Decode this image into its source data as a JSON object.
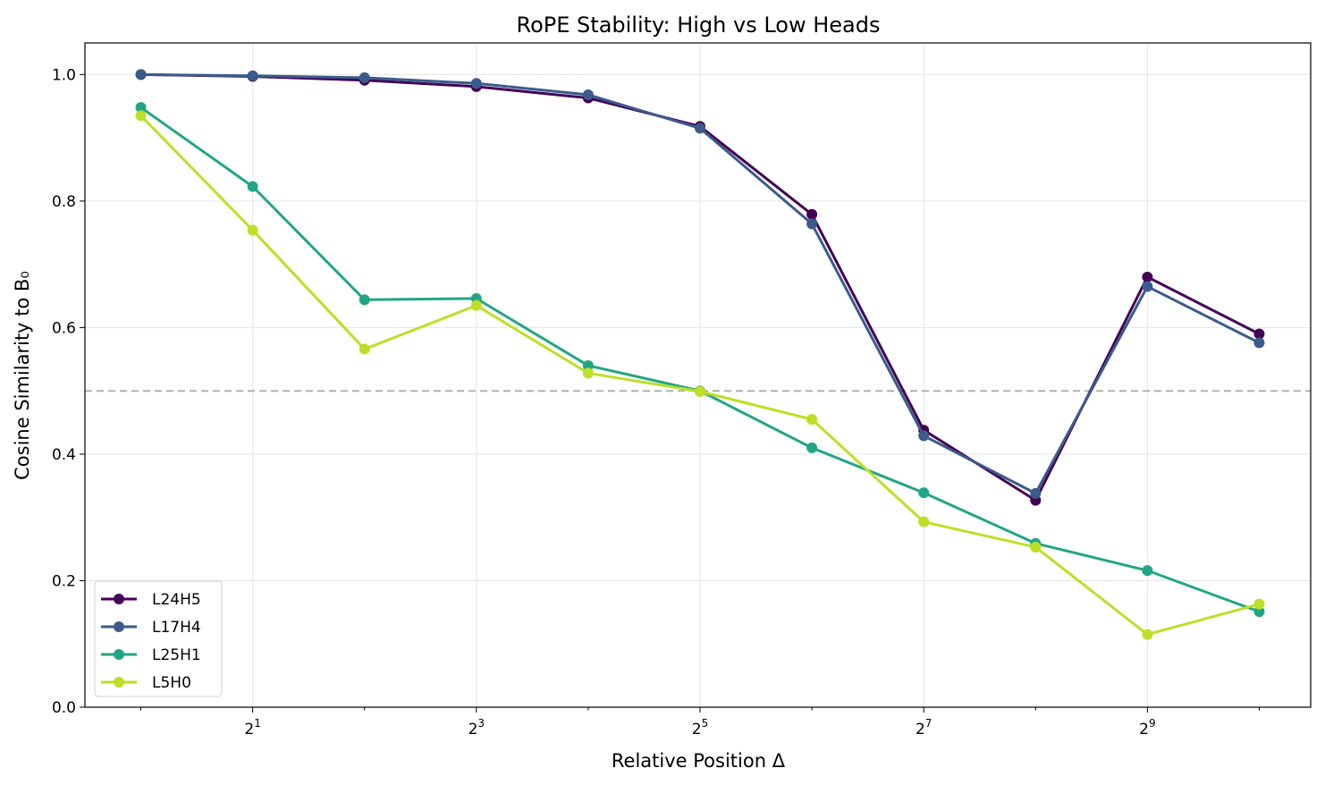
{
  "chart_data": {
    "type": "line",
    "title": "RoPE Stability: High vs Low Heads",
    "xlabel": "Relative Position Δ",
    "ylabel": "Cosine Similarity to B₀",
    "xscale": "log2",
    "x": [
      1,
      2,
      4,
      8,
      16,
      32,
      64,
      128,
      256,
      512,
      1024
    ],
    "xlim_log2": [
      -0.5,
      10.46
    ],
    "ylim": [
      0,
      1.05
    ],
    "xticks": [
      {
        "base": "2",
        "exp": "1",
        "value": 2
      },
      {
        "base": "2",
        "exp": "3",
        "value": 8
      },
      {
        "base": "2",
        "exp": "5",
        "value": 32
      },
      {
        "base": "2",
        "exp": "7",
        "value": 128
      },
      {
        "base": "2",
        "exp": "9",
        "value": 512
      }
    ],
    "yticks": [
      "0.0",
      "0.2",
      "0.4",
      "0.6",
      "0.8",
      "1.0"
    ],
    "grid": true,
    "reference_line": {
      "y": 0.5,
      "style": "dashed",
      "color": "#b0b0b0"
    },
    "legend_position": "lower-left",
    "series": [
      {
        "name": "L24H5",
        "color": "#440154",
        "values": [
          1.0,
          0.997,
          0.991,
          0.981,
          0.963,
          0.918,
          0.779,
          0.438,
          0.327,
          0.68,
          0.59
        ]
      },
      {
        "name": "L17H4",
        "color": "#3b5b8c",
        "values": [
          1.0,
          0.998,
          0.995,
          0.986,
          0.968,
          0.915,
          0.764,
          0.429,
          0.338,
          0.665,
          0.576
        ]
      },
      {
        "name": "L25H1",
        "color": "#21a685",
        "values": [
          0.948,
          0.823,
          0.644,
          0.646,
          0.54,
          0.5,
          0.41,
          0.339,
          0.259,
          0.216,
          0.151
        ]
      },
      {
        "name": "L5H0",
        "color": "#bddf26",
        "values": [
          0.935,
          0.754,
          0.566,
          0.635,
          0.528,
          0.499,
          0.455,
          0.293,
          0.253,
          0.115,
          0.163
        ]
      }
    ]
  }
}
